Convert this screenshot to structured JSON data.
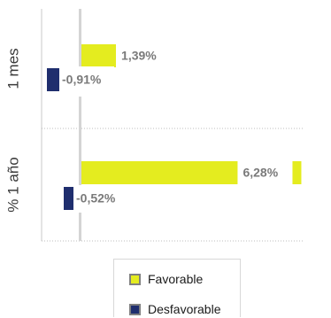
{
  "chart_data": {
    "type": "bar",
    "orientation": "horizontal",
    "categories": [
      "1 mes",
      "% 1 año"
    ],
    "series": [
      {
        "name": "Favorable",
        "color": "#e4ec1f",
        "values": [
          1.39,
          6.28
        ],
        "labels": [
          "1,39%",
          "6,28%"
        ]
      },
      {
        "name": "Desfavorable",
        "color": "#1f2e6e",
        "values": [
          -0.91,
          -0.52
        ],
        "labels": [
          "-0,91%",
          "-0,52%"
        ]
      }
    ],
    "grid": false,
    "legend_position": "bottom"
  },
  "legend": {
    "items": [
      {
        "label": "Favorable",
        "color": "#e4ec1f"
      },
      {
        "label": "Desfavorable",
        "color": "#1f2e6e"
      }
    ]
  }
}
